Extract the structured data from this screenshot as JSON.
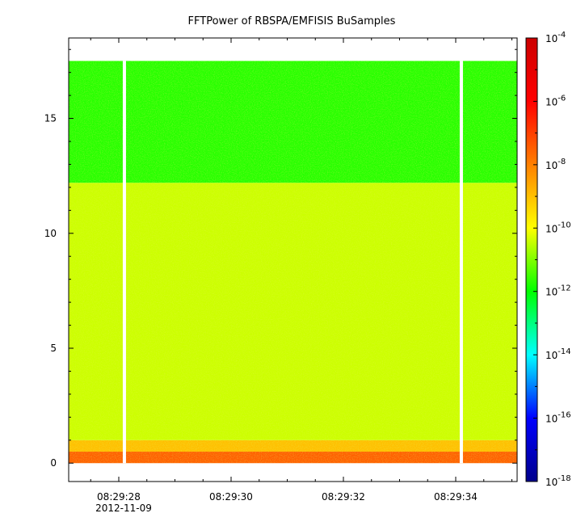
{
  "chart_data": {
    "type": "heatmap",
    "title": "FFTPower of RBSPA/EMFISIS  BuSamples",
    "xlabel": "",
    "ylabel": "",
    "x_ticks": [
      "08:29:28",
      "08:29:30",
      "08:29:32",
      "08:29:34"
    ],
    "x_date_label": "2012-11-09",
    "y_ticks": [
      0,
      5,
      10,
      15
    ],
    "ylim": [
      -0.8,
      18.5
    ],
    "y_data_max": 17.5,
    "colorbar": {
      "scale": "log",
      "range": [
        1e-18,
        0.0001
      ],
      "tick_base": "10",
      "tick_exponents": [
        "-4",
        "-6",
        "-8",
        "-10",
        "-12",
        "-14",
        "-16",
        "-18"
      ],
      "colors": [
        "#00008b",
        "#0000ff",
        "#00ffff",
        "#00ff00",
        "#ffff00",
        "#ff8000",
        "#ff0000",
        "#cc0000"
      ]
    },
    "bands": [
      {
        "y_range": [
          0.0,
          0.5
        ],
        "log10_power": -7.5
      },
      {
        "y_range": [
          0.5,
          1.0
        ],
        "log10_power": -9.0
      },
      {
        "y_range": [
          1.0,
          12.2
        ],
        "log10_power": -10.4
      },
      {
        "y_range": [
          12.2,
          17.5
        ],
        "log10_power": -11.7
      }
    ],
    "data_gaps_at": [
      "08:29:28.1",
      "08:29:34.1"
    ]
  }
}
